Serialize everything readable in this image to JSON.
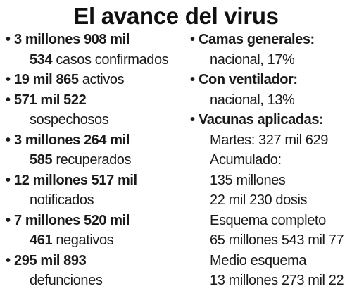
{
  "title": "El avance del virus",
  "left": [
    {
      "l1_bold": "3 millones 908 mil",
      "l2_bold": "534",
      "l2_text": " casos confirmados"
    },
    {
      "l1_bold": "19 mil 865",
      "l1_text": " activos"
    },
    {
      "l1_bold": "571 mil 522",
      "l2_text": "sospechosos"
    },
    {
      "l1_bold": "3 millones 264 mil",
      "l2_bold": "585",
      "l2_text": " recuperados"
    },
    {
      "l1_bold": "12 millones 517 mil",
      "l2_text": "notificados"
    },
    {
      "l1_bold": "7 millones 520 mil",
      "l2_bold": "461",
      "l2_text": " negativos"
    },
    {
      "l1_bold": "295 mil 893",
      "l2_text": "defunciones"
    }
  ],
  "right": {
    "camas_label": "Camas generales:",
    "camas_value": "nacional, 17%",
    "vent_label": "Con ventilador:",
    "vent_value": "nacional, 13%",
    "vac_label": "Vacunas aplicadas:",
    "vac_lines": [
      "Martes: 327 mil 629",
      "Acumulado:",
      "135 millones",
      "22 mil 230 dosis",
      "Esquema completo",
      "65 millones 543 mil 77",
      "Medio esquema",
      "13 millones 273 mil 22"
    ]
  },
  "bullet_char": "•"
}
